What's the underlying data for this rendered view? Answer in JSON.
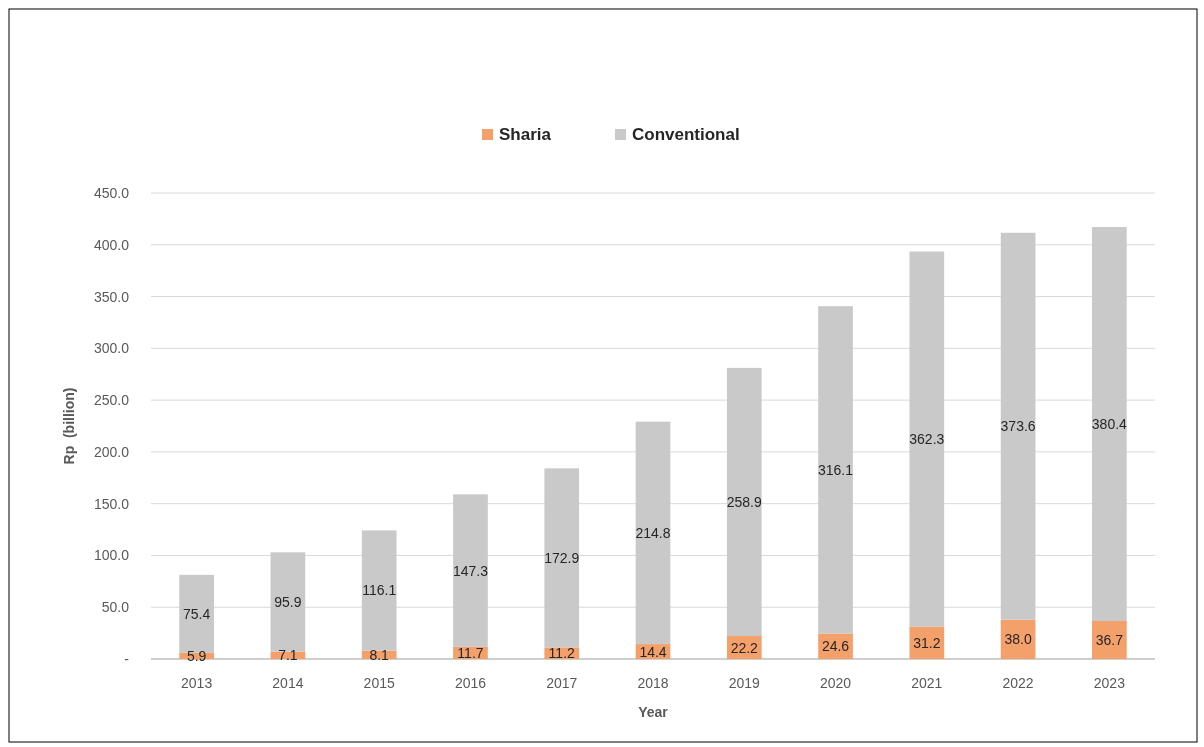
{
  "chart_data": {
    "type": "bar",
    "stacked": true,
    "xlabel": "Year",
    "ylabel": "Rp  (billion)",
    "categories": [
      "2013",
      "2014",
      "2015",
      "2016",
      "2017",
      "2018",
      "2019",
      "2020",
      "2021",
      "2022",
      "2023"
    ],
    "series": [
      {
        "name": "Sharia",
        "color": "#f4a06a",
        "values": [
          5.9,
          7.1,
          8.1,
          11.7,
          11.2,
          14.4,
          22.2,
          24.6,
          31.2,
          38.0,
          36.7
        ],
        "value_labels": [
          "5.9",
          "7.1",
          "8.1",
          "11.7",
          "11.2",
          "14.4",
          "22.2",
          "24.6",
          "31.2",
          "38.0",
          "36.7"
        ]
      },
      {
        "name": "Conventional",
        "color": "#c9c9c9",
        "values": [
          75.4,
          95.9,
          116.1,
          147.3,
          172.9,
          214.8,
          258.9,
          316.1,
          362.3,
          373.6,
          380.4
        ],
        "value_labels": [
          "75.4",
          "95.9",
          "116.1",
          "147.3",
          "172.9",
          "214.8",
          "258.9",
          "316.1",
          "362.3",
          "373.6",
          "380.4"
        ]
      }
    ],
    "ylim": [
      0,
      450
    ],
    "yticks": [
      {
        "value": 0,
        "label": "-"
      },
      {
        "value": 50,
        "label": "50.0"
      },
      {
        "value": 100,
        "label": "100.0"
      },
      {
        "value": 150,
        "label": "150.0"
      },
      {
        "value": 200,
        "label": "200.0"
      },
      {
        "value": 250,
        "label": "250.0"
      },
      {
        "value": 300,
        "label": "300.0"
      },
      {
        "value": 350,
        "label": "350.0"
      },
      {
        "value": 400,
        "label": "400.0"
      },
      {
        "value": 450,
        "label": "450.0"
      }
    ],
    "grid": "y",
    "legend": "top"
  }
}
